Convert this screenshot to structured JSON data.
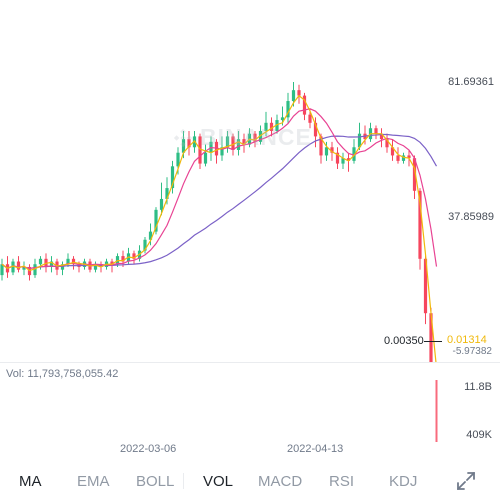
{
  "price_axis": {
    "high_label": "81.69361",
    "mid_label": "37.85989",
    "neg_label": "-5.97382"
  },
  "price_overlay": {
    "low_value": "0.00350",
    "current_price": "0.01314"
  },
  "watermark": {
    "text": "BINANCE"
  },
  "volume": {
    "readout": "Vol: 11,793,758,055.42",
    "axis_max": "11.8B",
    "axis_min": "409K"
  },
  "dates": [
    "2022-03-06",
    "2022-04-13"
  ],
  "tabs": {
    "ma": "MA",
    "ema": "EMA",
    "boll": "BOLL",
    "vol": "VOL",
    "macd": "MACD",
    "rsi": "RSI",
    "kdj": "KDJ"
  },
  "colors": {
    "up": "#2ebd85",
    "down": "#f6465d",
    "ma_fast": "#f0b90b",
    "ma_mid": "#e84393",
    "ma_slow": "#7b61c7",
    "accent": "#f0b90b"
  },
  "icons": {
    "expand": "expand-arrows-icon",
    "logo": "binance-logo-icon"
  },
  "chart_data": {
    "type": "candlestick",
    "y_axis_labels": [
      81.69361,
      37.85989,
      -5.97382
    ],
    "last_price": 0.01314,
    "lowest_marked": 0.0035,
    "candles": [
      [
        54,
        58,
        52,
        60
      ],
      [
        58,
        55,
        53,
        61
      ],
      [
        55,
        59,
        54,
        60
      ],
      [
        59,
        56,
        55,
        61
      ],
      [
        56,
        57,
        54,
        59
      ],
      [
        57,
        54,
        52,
        58
      ],
      [
        54,
        58,
        53,
        60
      ],
      [
        58,
        60,
        56,
        61
      ],
      [
        60,
        57,
        55,
        62
      ],
      [
        57,
        59,
        55,
        61
      ],
      [
        59,
        56,
        54,
        60
      ],
      [
        56,
        58,
        54,
        59
      ],
      [
        58,
        60,
        57,
        62
      ],
      [
        60,
        58,
        56,
        61
      ],
      [
        58,
        57,
        55,
        59
      ],
      [
        57,
        59,
        56,
        60
      ],
      [
        59,
        56,
        55,
        60
      ],
      [
        56,
        58,
        55,
        59
      ],
      [
        58,
        57,
        55,
        59
      ],
      [
        57,
        59,
        56,
        60
      ],
      [
        59,
        58,
        55,
        60
      ],
      [
        58,
        61,
        57,
        62
      ],
      [
        61,
        59,
        57,
        63
      ],
      [
        59,
        62,
        58,
        64
      ],
      [
        62,
        60,
        58,
        63
      ],
      [
        60,
        63,
        59,
        65
      ],
      [
        63,
        67,
        62,
        68
      ],
      [
        67,
        70,
        65,
        73
      ],
      [
        70,
        78,
        69,
        79
      ],
      [
        78,
        82,
        76,
        88
      ],
      [
        82,
        86,
        80,
        90
      ],
      [
        86,
        94,
        84,
        96
      ],
      [
        94,
        99,
        91,
        101
      ],
      [
        99,
        104,
        97,
        107
      ],
      [
        104,
        101,
        98,
        107
      ],
      [
        101,
        105,
        99,
        107
      ],
      [
        105,
        95,
        93,
        106
      ],
      [
        95,
        99,
        94,
        102
      ],
      [
        99,
        103,
        96,
        105
      ],
      [
        103,
        98,
        95,
        104
      ],
      [
        98,
        101,
        96,
        105
      ],
      [
        101,
        105,
        99,
        107
      ],
      [
        105,
        100,
        98,
        106
      ],
      [
        100,
        104,
        98,
        107
      ],
      [
        104,
        102,
        99,
        106
      ],
      [
        102,
        106,
        101,
        108
      ],
      [
        106,
        103,
        101,
        107
      ],
      [
        103,
        107,
        102,
        109
      ],
      [
        107,
        110,
        105,
        114
      ],
      [
        110,
        107,
        105,
        112
      ],
      [
        107,
        111,
        106,
        113
      ],
      [
        111,
        112,
        109,
        116
      ],
      [
        112,
        118,
        110,
        121
      ],
      [
        118,
        122,
        116,
        125
      ],
      [
        122,
        120,
        117,
        124
      ],
      [
        120,
        113,
        111,
        121
      ],
      [
        113,
        110,
        108,
        115
      ],
      [
        110,
        105,
        101,
        112
      ],
      [
        105,
        98,
        95,
        106
      ],
      [
        98,
        101,
        96,
        103
      ],
      [
        101,
        99,
        96,
        103
      ],
      [
        99,
        95,
        93,
        101
      ],
      [
        95,
        97,
        93,
        99
      ],
      [
        97,
        96,
        92,
        99
      ],
      [
        96,
        101,
        95,
        104
      ],
      [
        101,
        106,
        100,
        110
      ],
      [
        106,
        104,
        102,
        109
      ],
      [
        104,
        108,
        103,
        110
      ],
      [
        108,
        106,
        104,
        109
      ],
      [
        106,
        104,
        101,
        108
      ],
      [
        104,
        101,
        99,
        106
      ],
      [
        101,
        98,
        96,
        104
      ],
      [
        98,
        96,
        95,
        101
      ],
      [
        96,
        98,
        95,
        99
      ],
      [
        98,
        97,
        94,
        100
      ],
      [
        97,
        85,
        82,
        98
      ],
      [
        85,
        60,
        56,
        86
      ],
      [
        60,
        40,
        36,
        62
      ],
      [
        40,
        20,
        16,
        42
      ],
      [
        20,
        0.01314,
        0.0035,
        21
      ]
    ]
  }
}
